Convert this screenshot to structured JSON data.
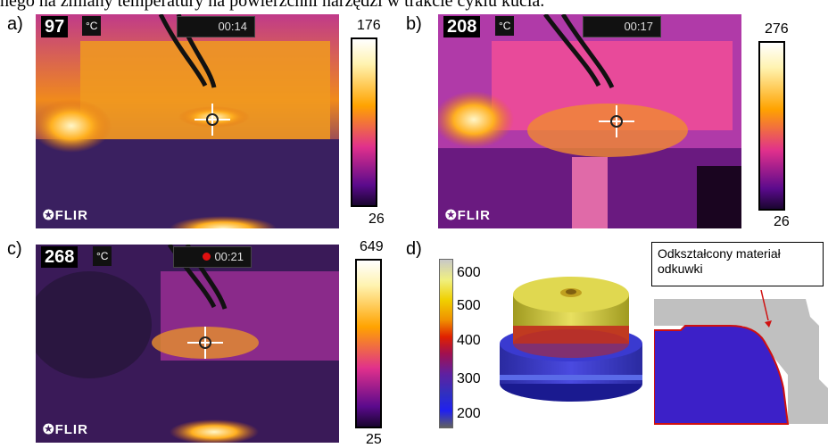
{
  "caption_top": "nego na zmiany temperatury na powierzchni narzędzi w trakcie cyklu kucia.",
  "panels": [
    {
      "label": "a)",
      "temp": "97",
      "unit": "°C",
      "time": "00:14",
      "scale_max": "176",
      "scale_min": "26",
      "logo": "FLIR",
      "recording": false
    },
    {
      "label": "b)",
      "temp": "208",
      "unit": "°C",
      "time": "00:17",
      "scale_max": "276",
      "scale_min": "26",
      "logo": "FLIR",
      "recording": false
    },
    {
      "label": "c)",
      "temp": "268",
      "unit": "°C",
      "time": "00:21",
      "scale_max": "649",
      "scale_min": "25",
      "logo": "FLIR",
      "recording": true
    }
  ],
  "panel_d": {
    "label": "d)",
    "legend_values": [
      "600",
      "500",
      "400",
      "300",
      "200"
    ],
    "annotation": "Odkształcony materiał odkuwki"
  },
  "colors": {
    "hot": "#fff7c0",
    "warm": "#ffa300",
    "mid": "#e0208c",
    "cool": "#5a0a8c",
    "cold": "#1a0530"
  }
}
